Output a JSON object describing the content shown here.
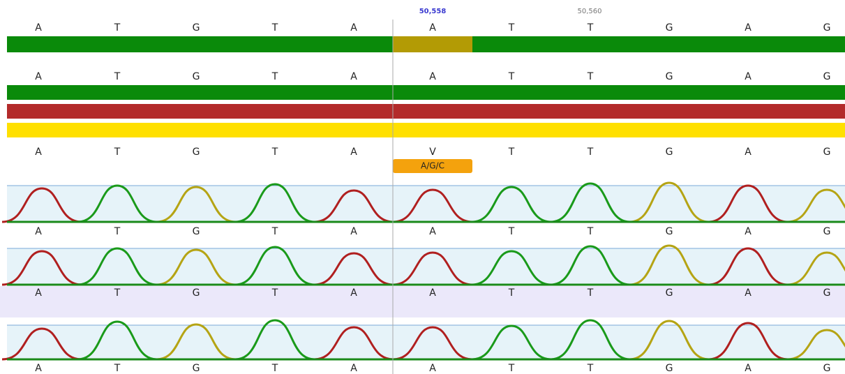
{
  "ruler": {
    "labels": [
      "50,558",
      "50,560"
    ]
  },
  "tracks": [
    {
      "bases": [
        "A",
        "T",
        "G",
        "T",
        "A",
        "A",
        "T",
        "T",
        "G",
        "A",
        "G"
      ]
    },
    {
      "bases": [
        "A",
        "T",
        "G",
        "T",
        "A",
        "A",
        "T",
        "T",
        "G",
        "A",
        "G"
      ]
    },
    {
      "bases": [
        "A",
        "T",
        "G",
        "T",
        "A",
        "V",
        "T",
        "T",
        "G",
        "A",
        "G"
      ]
    },
    {
      "bases": [
        "A",
        "T",
        "G",
        "T",
        "A",
        "A",
        "T",
        "T",
        "G",
        "A",
        "G"
      ]
    },
    {
      "bases": [
        "A",
        "T",
        "G",
        "T",
        "A",
        "A",
        "T",
        "T",
        "G",
        "A",
        "G"
      ]
    },
    {
      "bases": [
        "A",
        "T",
        "G",
        "T",
        "A",
        "A",
        "T",
        "T",
        "G",
        "A",
        "G"
      ]
    }
  ],
  "annotation": "A/G/C"
}
